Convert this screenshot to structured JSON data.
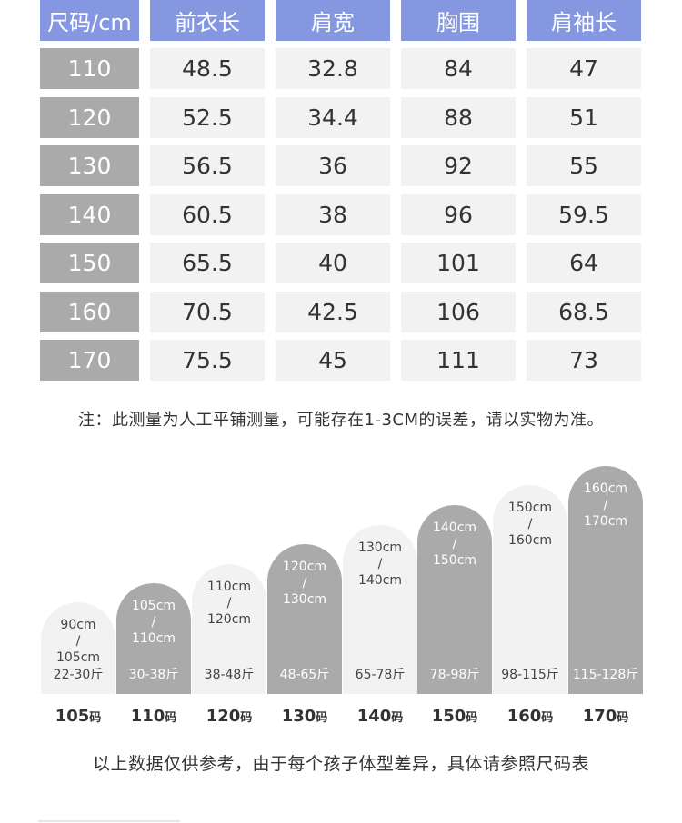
{
  "table": {
    "headers": [
      "尺码/cm",
      "前衣长",
      "肩宽",
      "胸围",
      "肩袖长"
    ],
    "rows": [
      [
        "110",
        "48.5",
        "32.8",
        "84",
        "47"
      ],
      [
        "120",
        "52.5",
        "34.4",
        "88",
        "51"
      ],
      [
        "130",
        "56.5",
        "36",
        "92",
        "55"
      ],
      [
        "140",
        "60.5",
        "38",
        "96",
        "59.5"
      ],
      [
        "150",
        "65.5",
        "40",
        "101",
        "64"
      ],
      [
        "160",
        "70.5",
        "42.5",
        "106",
        "68.5"
      ],
      [
        "170",
        "75.5",
        "45",
        "111",
        "73"
      ]
    ]
  },
  "note": "注：此测量为人工平铺测量，可能存在1-3CM的误差，请以实物为准。",
  "chart": {
    "unit_suffix": "码",
    "items": [
      {
        "code": "105",
        "h1": "90cm",
        "sep": "/",
        "h2": "105cm",
        "weight": "22-30斤",
        "tone": "light"
      },
      {
        "code": "110",
        "h1": "105cm",
        "sep": "/",
        "h2": "110cm",
        "weight": "30-38斤",
        "tone": "dark"
      },
      {
        "code": "120",
        "h1": "110cm",
        "sep": "/",
        "h2": "120cm",
        "weight": "38-48斤",
        "tone": "light"
      },
      {
        "code": "130",
        "h1": "120cm",
        "sep": "/",
        "h2": "130cm",
        "weight": "48-65斤",
        "tone": "dark"
      },
      {
        "code": "140",
        "h1": "130cm",
        "sep": "/",
        "h2": "140cm",
        "weight": "65-78斤",
        "tone": "light"
      },
      {
        "code": "150",
        "h1": "140cm",
        "sep": "/",
        "h2": "150cm",
        "weight": "78-98斤",
        "tone": "dark"
      },
      {
        "code": "160",
        "h1": "150cm",
        "sep": "/",
        "h2": "160cm",
        "weight": "98-115斤",
        "tone": "light"
      },
      {
        "code": "170",
        "h1": "160cm",
        "sep": "/",
        "h2": "170cm",
        "weight": "115-128斤",
        "tone": "dark"
      }
    ]
  },
  "footer": "以上数据仅供参考，由于每个孩子体型差异，具体请参照尺码表",
  "colors": {
    "header_bg": "#8497e0",
    "size_bg": "#aaaaaa",
    "value_bg": "#f2f2f2"
  }
}
